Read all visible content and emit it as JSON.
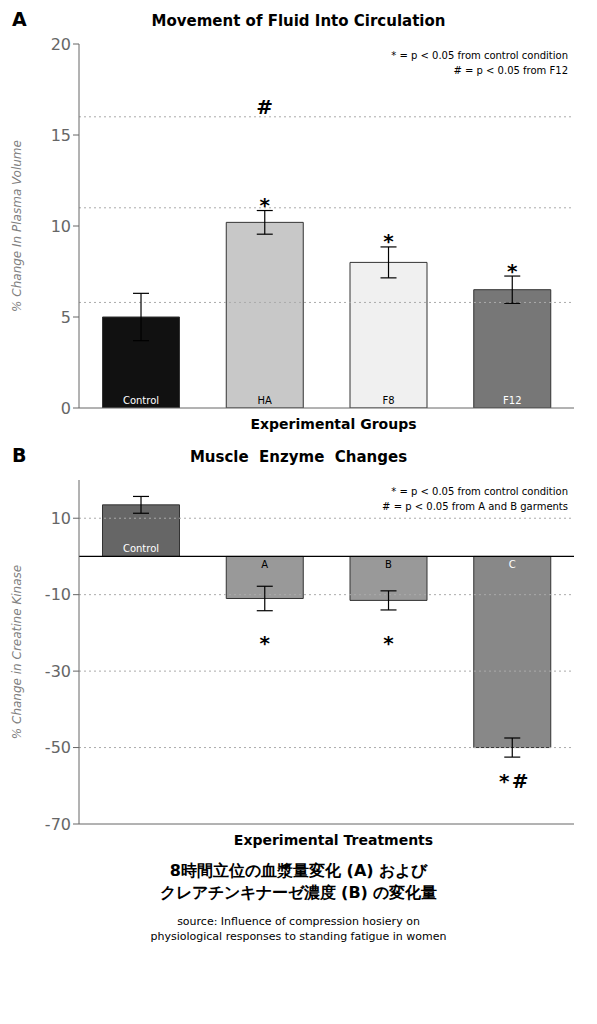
{
  "title": "8時間立位の血漿量変化 (A) および\nクレアチンキナーゼ濃度 (B) の変化量",
  "annotations": [
    "source: Influence of compression hosiery on\nphysiological responses to standing fatigue in women"
  ],
  "chart_data": [
    {
      "type": "bar",
      "panel_label": "A",
      "title": "Movement of Fluid Into Circulation",
      "xlabel": "Experimental Groups",
      "ylabel": "% Change In Plasma Volume",
      "categories": [
        "Control",
        "HA",
        "F8",
        "F12"
      ],
      "values": [
        5.0,
        10.2,
        8.0,
        6.5
      ],
      "errors": [
        1.3,
        0.65,
        0.85,
        0.75
      ],
      "colors": [
        "#111111",
        "#c8c8c8",
        "#f0f0f0",
        "#777777"
      ],
      "ylim": [
        0,
        20
      ],
      "yticks": [
        0,
        5,
        10,
        15,
        20
      ],
      "grid": false,
      "tick_labels": "y",
      "reference_lines": [
        5.8,
        11.0,
        16.0
      ],
      "annotations": [
        {
          "text": "* = p < 0.05 from control condition"
        },
        {
          "text": "# = p < 0.05 from F12"
        },
        {
          "text": "*",
          "x": "HA",
          "y": 11.1
        },
        {
          "text": "*",
          "x": "F8",
          "y": 9.1
        },
        {
          "text": "*",
          "x": "F12",
          "y": 7.5
        },
        {
          "text": "#",
          "x": "HA",
          "y": 16.5
        }
      ]
    },
    {
      "type": "bar",
      "panel_label": "B",
      "title": "Muscle  Enzyme  Changes",
      "xlabel": "Experimental Treatments",
      "ylabel": "% Change in Creatine Kinase",
      "categories": [
        "Control",
        "A",
        "B",
        "C"
      ],
      "values": [
        13.5,
        -11.0,
        -11.5,
        -50.0
      ],
      "errors": [
        2.2,
        3.2,
        2.5,
        2.5
      ],
      "colors": [
        "#666666",
        "#999999",
        "#999999",
        "#888888"
      ],
      "ylim": [
        -70,
        20
      ],
      "yticks": [
        -70,
        -50,
        -30,
        -10,
        10
      ],
      "grid": false,
      "tick_labels": "y",
      "reference_lines": [
        -50,
        -30,
        -10,
        10
      ],
      "baseline": 0,
      "annotations": [
        {
          "text": "* = p < 0.05 from control condition"
        },
        {
          "text": "# = p < 0.05 from A and B garments"
        },
        {
          "text": "*",
          "x": "A",
          "y": -23
        },
        {
          "text": "*",
          "x": "B",
          "y": -23
        },
        {
          "text": "*",
          "x": "C",
          "y": -59
        },
        {
          "text": "#",
          "x": "C",
          "y": -59
        }
      ]
    }
  ]
}
